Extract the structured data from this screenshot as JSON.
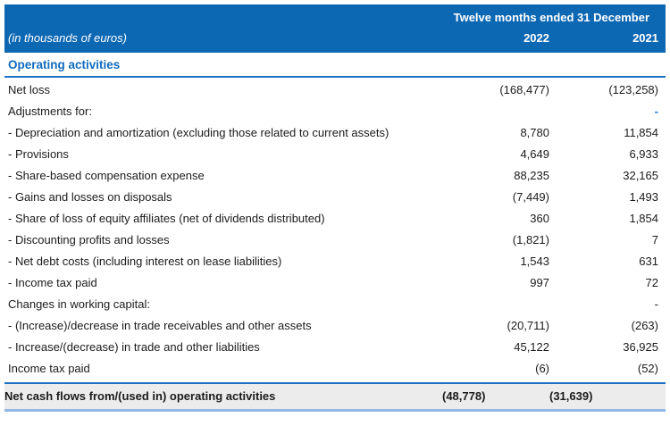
{
  "header": {
    "period_label": "Twelve months ended 31 December",
    "unit_label": "(in thousands of euros)",
    "col_2022": "2022",
    "col_2021": "2021"
  },
  "section": {
    "title": "Operating activities"
  },
  "rows": [
    {
      "label": "Net loss",
      "v2022": "(168,477)",
      "v2021": "(123,258)"
    },
    {
      "label": "Adjustments for:",
      "v2022": "",
      "v2021": "-"
    },
    {
      "label": "- Depreciation and amortization (excluding those related to current assets)",
      "v2022": "8,780",
      "v2021": "11,854"
    },
    {
      "label": "- Provisions",
      "v2022": "4,649",
      "v2021": "6,933"
    },
    {
      "label": "- Share-based compensation expense",
      "v2022": "88,235",
      "v2021": "32,165"
    },
    {
      "label": "- Gains and losses on disposals",
      "v2022": "(7,449)",
      "v2021": "1,493"
    },
    {
      "label": "- Share of loss of equity affiliates (net of dividends distributed)",
      "v2022": "360",
      "v2021": "1,854"
    },
    {
      "label": "- Discounting profits and losses",
      "v2022": "(1,821)",
      "v2021": "7"
    },
    {
      "label": "- Net debt costs (including interest on lease liabilities)",
      "v2022": "1,543",
      "v2021": "631"
    },
    {
      "label": "- Income tax paid",
      "v2022": "997",
      "v2021": "72"
    },
    {
      "label": "Changes in working capital:",
      "v2022": "",
      "v2021": "-"
    },
    {
      "label": "- (Increase)/decrease in trade receivables and other assets",
      "v2022": "(20,711)",
      "v2021": "(263)"
    },
    {
      "label": "- Increase/(decrease) in trade and other liabilities",
      "v2022": "45,122",
      "v2021": "36,925"
    },
    {
      "label": "Income tax paid",
      "v2022": "(6)",
      "v2021": "(52)"
    }
  ],
  "total_row": {
    "label": "Net cash flows from/(used in) operating activities",
    "v2022": "(48,778)",
    "v2021": "(31,639)"
  },
  "colors": {
    "header_bg": "#0d68b4",
    "header_text": "#ffffff",
    "accent_text": "#0f6cbe",
    "rule_blue": "#1d72c4",
    "dash_blue": "#1d78cc",
    "total_bg": "#ececec",
    "total_border_top": "#1d72c4",
    "total_border_bottom": "#8fb9e4",
    "body_text": "#1b1b1b"
  }
}
